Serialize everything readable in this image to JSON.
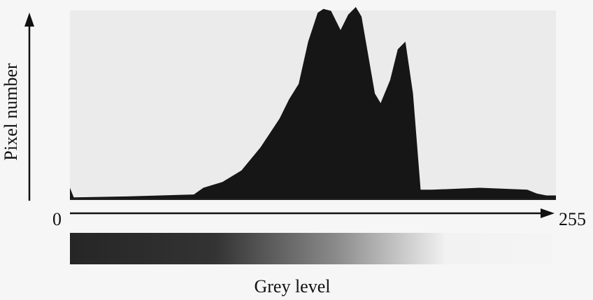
{
  "chart_data": {
    "type": "area",
    "y_label": "Pixel number",
    "x_label": "Grey level",
    "x": [
      0,
      2,
      30,
      65,
      70,
      80,
      90,
      100,
      110,
      115,
      120,
      125,
      130,
      133,
      137,
      142,
      146,
      150,
      153,
      160,
      163,
      168,
      172,
      176,
      180,
      184,
      190,
      215,
      240,
      245,
      250,
      255
    ],
    "values": [
      6,
      1,
      1.5,
      2.5,
      6,
      9,
      15,
      27,
      42,
      52,
      60,
      82,
      97,
      99,
      98,
      88,
      96,
      100,
      95,
      55,
      50,
      62,
      78,
      82,
      55,
      5,
      5,
      6,
      5,
      3,
      2,
      2
    ],
    "xlim": [
      0,
      255
    ],
    "xticks": [
      0,
      255
    ],
    "ylim": [
      0,
      100
    ],
    "color": "#161616",
    "plot_background": "#ebebeb"
  }
}
